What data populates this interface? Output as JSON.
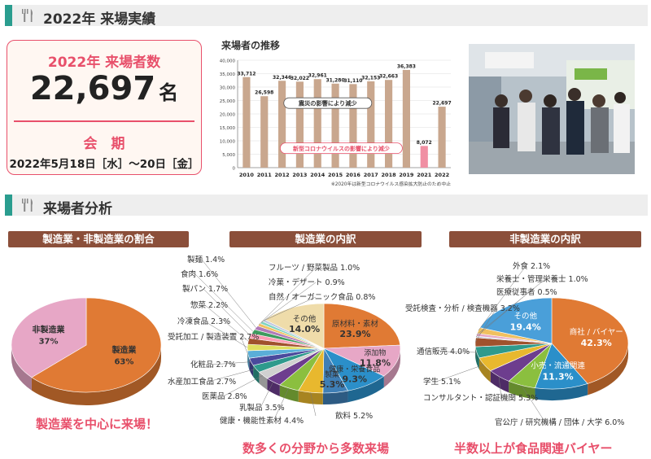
{
  "sections": {
    "results_title": "2022年 来場実績",
    "analysis_title": "来場者分析"
  },
  "visitor_box": {
    "title": "2022年 来場者数",
    "count": "22,697",
    "unit": "名",
    "period_title": "会　期",
    "period_dates": "2022年5月18日［水］〜20日［金］"
  },
  "bar_chart_title": "来場者の推移",
  "ribbons": {
    "pie1": "製造業・非製造業の割合",
    "pie2": "製造業の内訳",
    "pie3": "非製造業の内訳"
  },
  "taglines": {
    "pie1": "製造業を中心に来場！",
    "pie2": "数多くの分野から多数来場",
    "pie3": "半数以上が食品関連バイヤー"
  },
  "colors": {
    "accent_pink": "#e8506b",
    "teal": "#2a9d8f",
    "bar_tan": "#c9a78e",
    "bar_pink": "#f08fa3",
    "ribbon_brown": "#8b4f3a",
    "orange": "#e07a34",
    "light_pink": "#e7a7c6"
  },
  "chart_data": [
    {
      "type": "bar",
      "title": "",
      "categories": [
        "2010",
        "2011",
        "2012",
        "2013",
        "2014",
        "2015",
        "2016",
        "2017",
        "2018",
        "2019",
        "2021",
        "2022"
      ],
      "values": [
        33712,
        26598,
        32346,
        32022,
        32961,
        31280,
        31110,
        32153,
        32663,
        36383,
        8072,
        22697
      ],
      "value_labels": [
        "33,712",
        "26,598",
        "32,346",
        "32,022",
        "32,961",
        "31,280",
        "31,110",
        "32,153",
        "32,663",
        "36,383",
        "8,072",
        "22,697"
      ],
      "ylim": [
        0,
        40000
      ],
      "yticks": [
        0,
        5000,
        10000,
        15000,
        20000,
        25000,
        30000,
        35000,
        40000
      ],
      "ytick_labels": [
        "0",
        "5,000",
        "10,000",
        "15,000",
        "20,000",
        "25,000",
        "30,000",
        "35,000",
        "40,000"
      ],
      "annotations": [
        "震災の影響により減少",
        "新型コロナウイルスの影響により減少"
      ],
      "footnote": "※2020年は新型コロナウイルス感染拡大防止のため中止"
    },
    {
      "type": "pie",
      "title": "製造業・非製造業の割合",
      "slices": [
        {
          "label": "製造業",
          "value": 63,
          "value_label": "63%",
          "color": "#e07a34"
        },
        {
          "label": "非製造業",
          "value": 37,
          "value_label": "37%",
          "color": "#e7a7c6"
        }
      ]
    },
    {
      "type": "pie",
      "title": "製造業の内訳",
      "slices": [
        {
          "label": "原材料・素材",
          "value": 23.9,
          "value_label": "23.9%",
          "color": "#e07a34"
        },
        {
          "label": "添加物",
          "value": 11.8,
          "value_label": "11.8%",
          "color": "#e7a7c6"
        },
        {
          "label": "健康・栄養食品",
          "value": 9.3,
          "value_label": "9.3%",
          "color": "#2b8fc9"
        },
        {
          "label": "製菓",
          "value": 5.3,
          "value_label": "5.3%",
          "color": "#3f7fb6"
        },
        {
          "label": "飲料",
          "value": 5.2,
          "value_label": "5.2%",
          "color": "#e8b82e"
        },
        {
          "label": "健康・機能性素材",
          "value": 4.4,
          "value_label": "4.4%",
          "color": "#8bbf3f"
        },
        {
          "label": "乳製品",
          "value": 3.5,
          "value_label": "3.5%",
          "color": "#6d3d8e"
        },
        {
          "label": "医薬品",
          "value": 2.8,
          "value_label": "2.8%",
          "color": "#d0d0d0"
        },
        {
          "label": "水産加工食品",
          "value": 2.7,
          "value_label": "2.7%",
          "color": "#2e9a8c"
        },
        {
          "label": "化粧品",
          "value": 2.7,
          "value_label": "2.7%",
          "color": "#4a4a9c"
        },
        {
          "label": "受託加工 / 製造装置",
          "value": 2.7,
          "value_label": "2.7%",
          "color": "#5aaed8"
        },
        {
          "label": "冷凍食品",
          "value": 2.3,
          "value_label": "2.3%",
          "color": "#e0e060"
        },
        {
          "label": "惣菜",
          "value": 2.2,
          "value_label": "2.2%",
          "color": "#a0522d"
        },
        {
          "label": "製パン",
          "value": 1.7,
          "value_label": "1.7%",
          "color": "#ff9db5"
        },
        {
          "label": "食肉",
          "value": 1.6,
          "value_label": "1.6%",
          "color": "#3f9b5f"
        },
        {
          "label": "製麺",
          "value": 1.4,
          "value_label": "1.4%",
          "color": "#b07ab8"
        },
        {
          "label": "フルーツ / 野菜製品",
          "value": 1.0,
          "value_label": "1.0%",
          "color": "#f0c060"
        },
        {
          "label": "冷菓・デザート",
          "value": 0.9,
          "value_label": "0.9%",
          "color": "#7fd4c0"
        },
        {
          "label": "自然 / オーガニック食品",
          "value": 0.8,
          "value_label": "0.8%",
          "color": "#c0c8e0"
        },
        {
          "label": "その他",
          "value": 14.0,
          "value_label": "14.0%",
          "color": "#efdcaa"
        }
      ]
    },
    {
      "type": "pie",
      "title": "非製造業の内訳",
      "slices": [
        {
          "label": "商社 / バイヤー",
          "value": 42.3,
          "value_label": "42.3%",
          "color": "#e07a34"
        },
        {
          "label": "小売・流通関連",
          "value": 11.3,
          "value_label": "11.3%",
          "color": "#2b8fc9"
        },
        {
          "label": "官公庁 / 研究機構 / 団体 / 大学",
          "value": 6.0,
          "value_label": "6.0%",
          "color": "#8bbf3f"
        },
        {
          "label": "コンサルタント・認証機関",
          "value": 5.3,
          "value_label": "5.3%",
          "color": "#6d3d8e"
        },
        {
          "label": "学生",
          "value": 5.1,
          "value_label": "5.1%",
          "color": "#e8b82e"
        },
        {
          "label": "通信販売",
          "value": 4.0,
          "value_label": "4.0%",
          "color": "#2e9a8c"
        },
        {
          "label": "受託検査・分析 / 検査機器",
          "value": 3.2,
          "value_label": "3.2%",
          "color": "#a0522d"
        },
        {
          "label": "医療従事者",
          "value": 0.5,
          "value_label": "0.5%",
          "color": "#c0c8e0"
        },
        {
          "label": "栄養士・管理栄養士",
          "value": 1.0,
          "value_label": "1.0%",
          "color": "#e7a7c6"
        },
        {
          "label": "外食",
          "value": 2.1,
          "value_label": "2.1%",
          "color": "#f0c060"
        },
        {
          "label": "その他",
          "value": 19.4,
          "value_label": "19.4%",
          "color": "#4a9fd9"
        }
      ]
    }
  ]
}
